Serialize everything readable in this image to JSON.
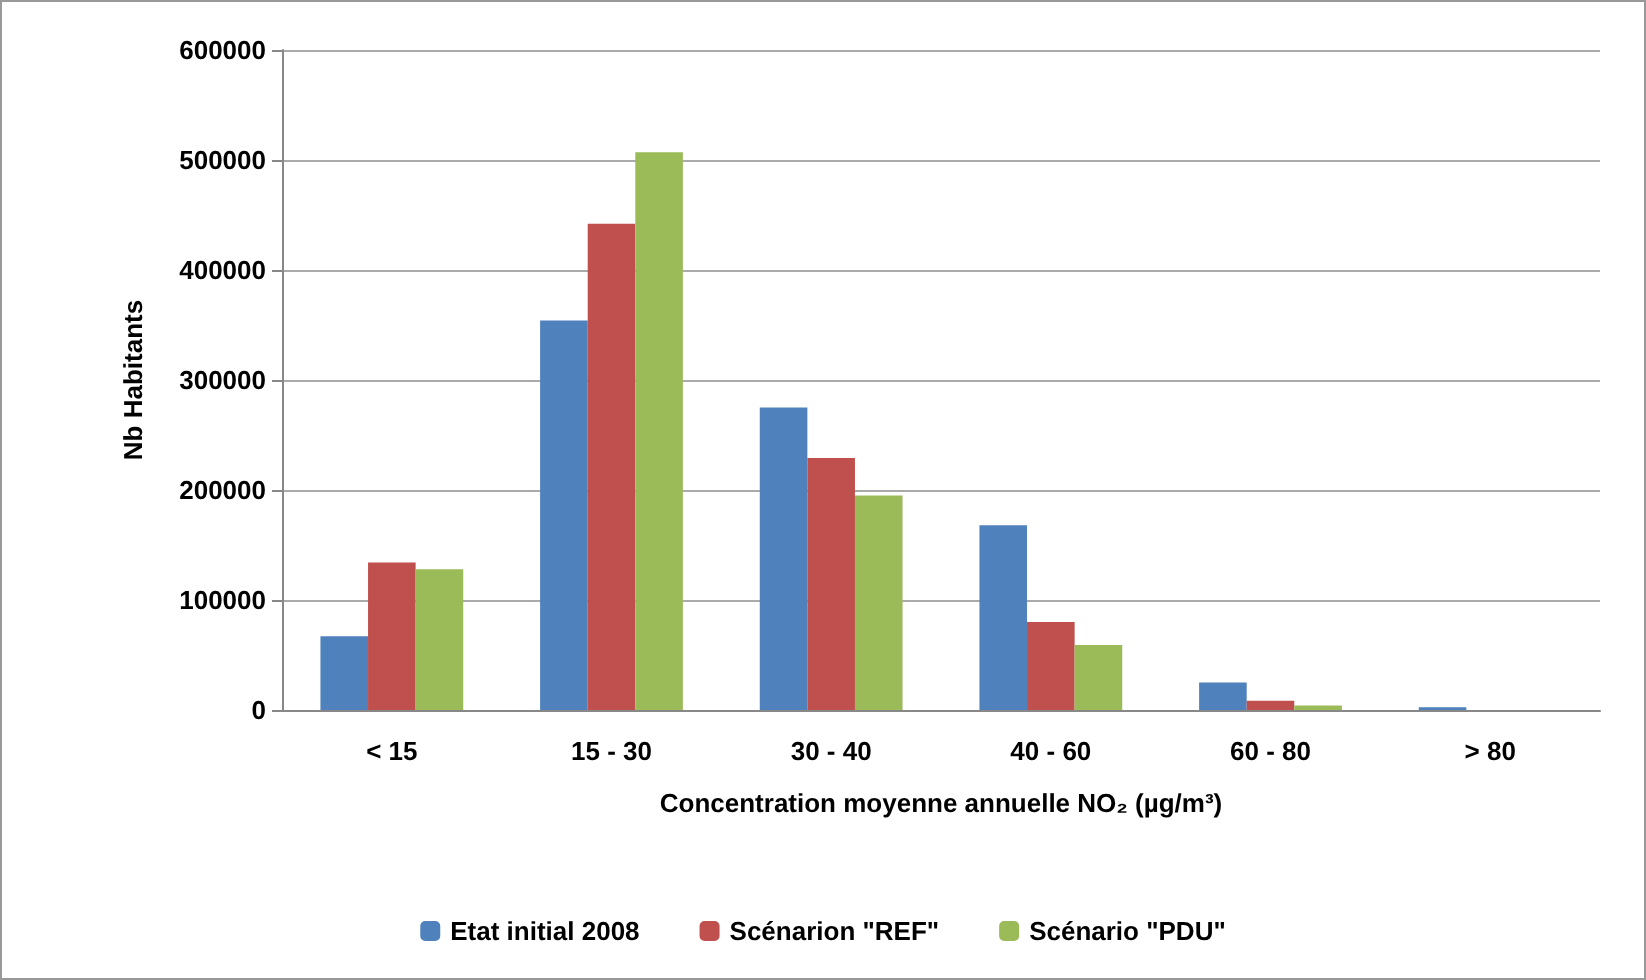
{
  "chart_data": {
    "type": "bar",
    "categories": [
      "< 15",
      "15 - 30",
      "30 - 40",
      "40 - 60",
      "60 - 80",
      "> 80"
    ],
    "series": [
      {
        "name": "Etat initial 2008",
        "color": "#4f81bd",
        "values": [
          67000,
          354000,
          275000,
          168000,
          25000,
          2500
        ]
      },
      {
        "name": "Scénarion \"REF\"",
        "color": "#c0504d",
        "values": [
          134000,
          442000,
          229000,
          80000,
          8500,
          0
        ]
      },
      {
        "name": "Scénario \"PDU\"",
        "color": "#9bbb59",
        "values": [
          128000,
          507000,
          195000,
          59000,
          4000,
          0
        ]
      }
    ],
    "xlabel": "Concentration moyenne annuelle NO₂ (µg/m³)",
    "ylabel": "Nb Habitants",
    "ylim": [
      0,
      600000
    ],
    "yticks": [
      0,
      100000,
      200000,
      300000,
      400000,
      500000,
      600000
    ],
    "grid": "y",
    "legend": "bottom"
  }
}
